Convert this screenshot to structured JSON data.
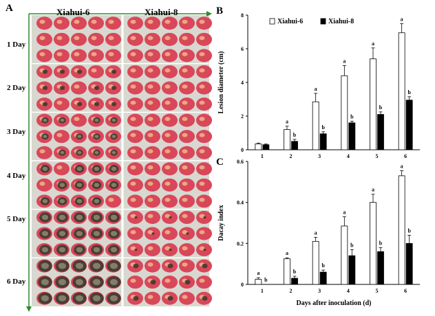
{
  "panel_a": {
    "letter": "A",
    "cultivars": [
      "Xiahui-6",
      "Xiahui-8"
    ],
    "days": [
      "1 Day",
      "2 Day",
      "3 Day",
      "4 Day",
      "5 Day",
      "6 Day"
    ]
  },
  "colors": {
    "peach_fresh": "#d9475a",
    "peach_blush": "#ecc08a",
    "rot_dark": "#3c3a30",
    "rot_mold": "#8e8f78",
    "tray": "#d8d8d0",
    "frame_arrow": "#2e8b2e"
  },
  "chart_data": [
    {
      "panel": "B",
      "type": "bar",
      "ylabel": "Lesion diameter (cm)",
      "xlabel": "",
      "categories": [
        "1",
        "2",
        "3",
        "4",
        "5",
        "6"
      ],
      "ylim": [
        0,
        8
      ],
      "yticks": [
        "0",
        "2",
        "4",
        "6",
        "8"
      ],
      "legend_position": "top-center",
      "series": [
        {
          "name": "Xiahui-6",
          "fill": "#ffffff",
          "values": [
            0.35,
            1.2,
            2.85,
            4.4,
            5.4,
            6.95
          ],
          "errors": [
            0.05,
            0.2,
            0.5,
            0.6,
            0.65,
            0.55
          ],
          "letters": [
            "",
            "a",
            "a",
            "a",
            "a",
            "a"
          ]
        },
        {
          "name": "Xiahui-8",
          "fill": "#000000",
          "values": [
            0.3,
            0.5,
            0.95,
            1.6,
            2.1,
            2.95
          ],
          "errors": [
            0.04,
            0.12,
            0.12,
            0.1,
            0.15,
            0.2
          ],
          "letters": [
            "",
            "b",
            "b",
            "b",
            "b",
            "b"
          ]
        }
      ]
    },
    {
      "panel": "C",
      "type": "bar",
      "ylabel": "Dacay index",
      "xlabel": "Days after inoculation (d)",
      "categories": [
        "1",
        "2",
        "3",
        "4",
        "5",
        "6"
      ],
      "ylim": [
        0,
        0.6
      ],
      "yticks": [
        "0",
        "0.2",
        "0.4",
        "0.6"
      ],
      "series": [
        {
          "name": "Xiahui-6",
          "fill": "#ffffff",
          "values": [
            0.025,
            0.125,
            0.21,
            0.285,
            0.4,
            0.53
          ],
          "errors": [
            0.008,
            0.005,
            0.02,
            0.045,
            0.04,
            0.025
          ],
          "letters": [
            "a",
            "a",
            "a",
            "a",
            "a",
            "a"
          ]
        },
        {
          "name": "Xiahui-8",
          "fill": "#000000",
          "values": [
            0.0,
            0.03,
            0.06,
            0.14,
            0.16,
            0.2
          ],
          "errors": [
            0.0,
            0.01,
            0.01,
            0.03,
            0.02,
            0.04
          ],
          "letters": [
            "b",
            "b",
            "b",
            "b",
            "b",
            "b"
          ]
        }
      ]
    }
  ]
}
